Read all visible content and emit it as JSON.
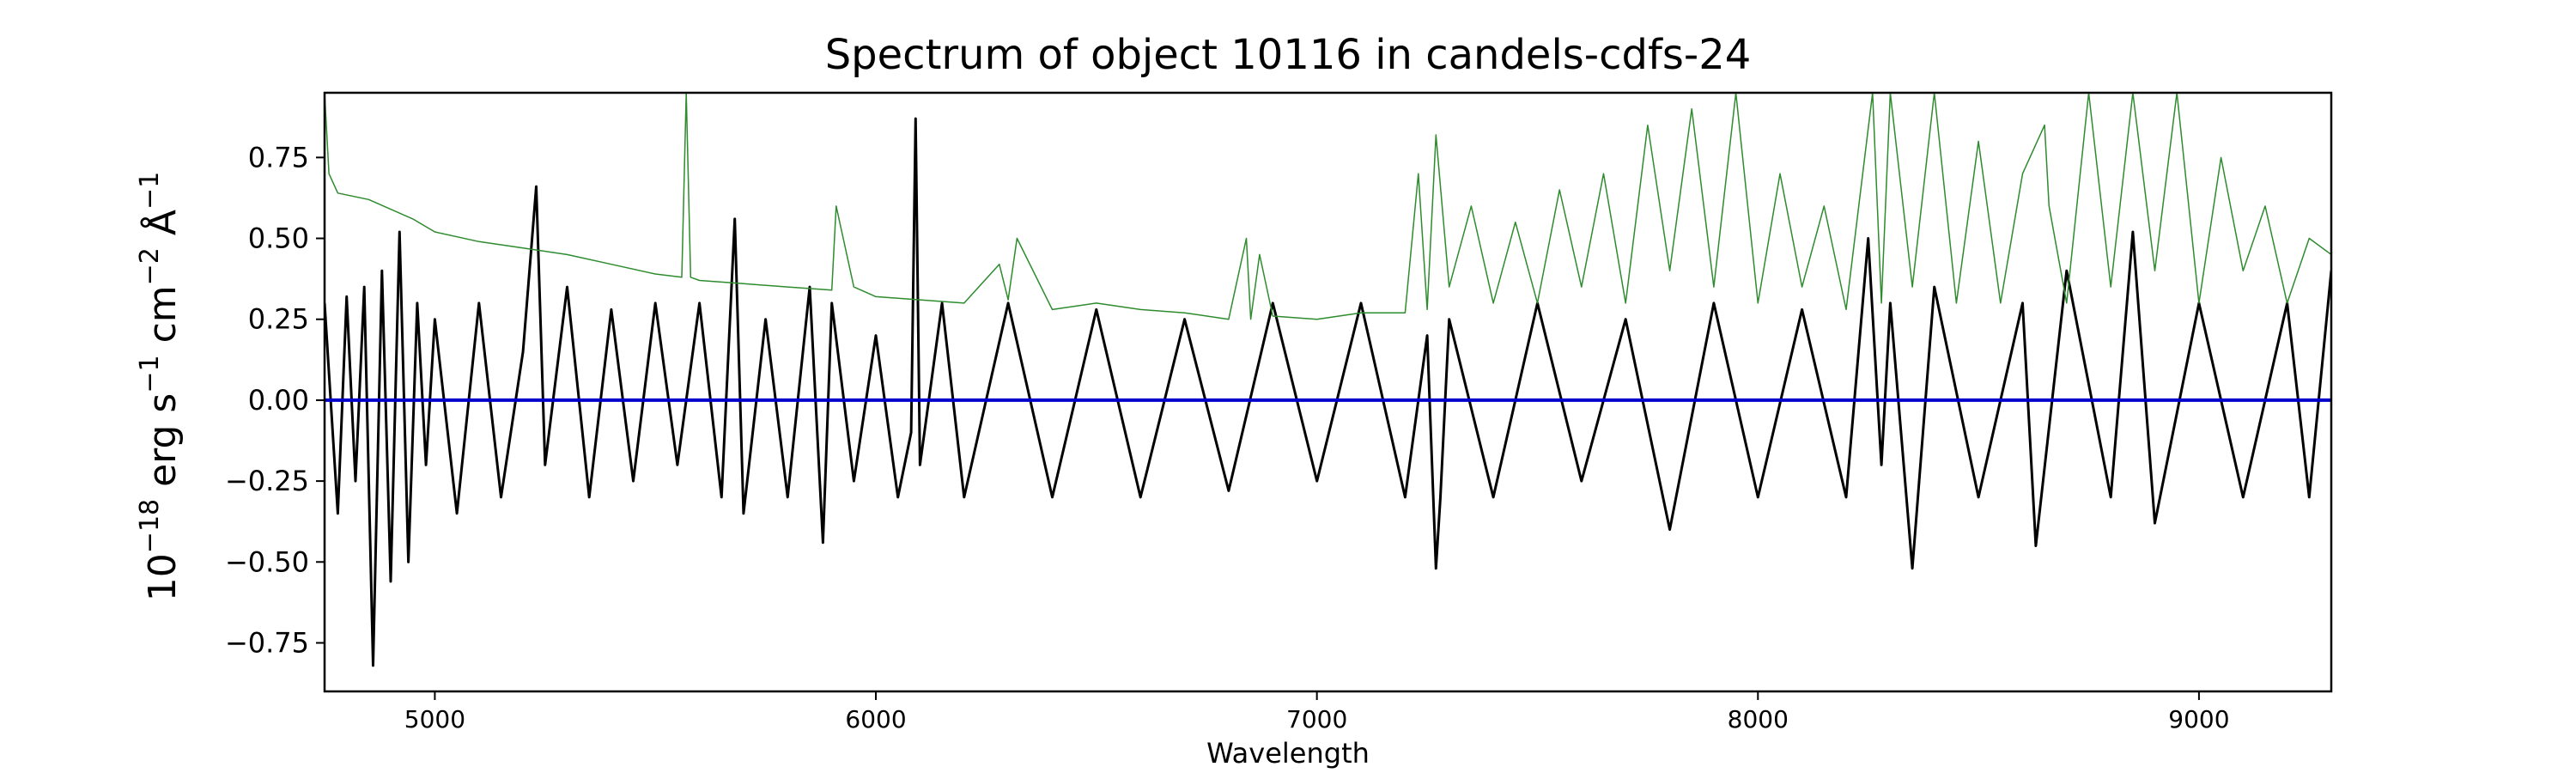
{
  "chart_data": {
    "type": "line",
    "title": "Spectrum of object 10116 in candels-cdfs-24",
    "xlabel": "Wavelength",
    "ylabel": {
      "base": "10",
      "exp_base": "−18",
      "unit_erg": " erg s",
      "exp_s": "−1",
      "unit_cm": " cm",
      "exp_cm": "−2",
      "unit_angstrom": " Å",
      "exp_angstrom": "−1"
    },
    "xlim": [
      4750,
      9300
    ],
    "ylim": [
      -0.9,
      0.95
    ],
    "x_ticks": [
      5000,
      6000,
      7000,
      8000,
      9000
    ],
    "x_tick_labels": [
      "5000",
      "6000",
      "7000",
      "8000",
      "9000"
    ],
    "y_ticks": [
      -0.75,
      -0.5,
      -0.25,
      0.0,
      0.25,
      0.5,
      0.75
    ],
    "y_tick_labels": [
      "−0.75",
      "−0.50",
      "−0.25",
      "0.00",
      "0.25",
      "0.50",
      "0.75"
    ],
    "grid": false,
    "series": [
      {
        "color": "#000000",
        "x": [
          4750,
          4780,
          4800,
          4820,
          4840,
          4860,
          4880,
          4900,
          4920,
          4940,
          4960,
          4980,
          5000,
          5050,
          5100,
          5150,
          5200,
          5230,
          5250,
          5300,
          5350,
          5400,
          5450,
          5500,
          5550,
          5600,
          5650,
          5680,
          5700,
          5750,
          5800,
          5850,
          5880,
          5900,
          5950,
          6000,
          6050,
          6080,
          6090,
          6100,
          6150,
          6200,
          6300,
          6400,
          6500,
          6600,
          6700,
          6800,
          6900,
          7000,
          7100,
          7200,
          7250,
          7270,
          7280,
          7300,
          7400,
          7500,
          7600,
          7700,
          7800,
          7900,
          8000,
          8100,
          8200,
          8250,
          8280,
          8300,
          8350,
          8400,
          8500,
          8600,
          8630,
          8700,
          8800,
          8850,
          8900,
          9000,
          9100,
          9200,
          9250,
          9300
        ],
        "y": [
          0.3,
          -0.35,
          0.32,
          -0.25,
          0.35,
          -0.82,
          0.4,
          -0.56,
          0.52,
          -0.5,
          0.3,
          -0.2,
          0.25,
          -0.35,
          0.3,
          -0.3,
          0.15,
          0.66,
          -0.2,
          0.35,
          -0.3,
          0.28,
          -0.25,
          0.3,
          -0.2,
          0.3,
          -0.3,
          0.56,
          -0.35,
          0.25,
          -0.3,
          0.35,
          -0.44,
          0.3,
          -0.25,
          0.2,
          -0.3,
          -0.1,
          0.87,
          -0.2,
          0.3,
          -0.3,
          0.3,
          -0.3,
          0.28,
          -0.3,
          0.25,
          -0.28,
          0.3,
          -0.25,
          0.3,
          -0.3,
          0.2,
          -0.52,
          -0.3,
          0.25,
          -0.3,
          0.3,
          -0.25,
          0.25,
          -0.4,
          0.3,
          -0.3,
          0.28,
          -0.3,
          0.5,
          -0.2,
          0.3,
          -0.52,
          0.35,
          -0.3,
          0.3,
          -0.45,
          0.4,
          -0.3,
          0.52,
          -0.38,
          0.3,
          -0.3,
          0.3,
          -0.3,
          0.4
        ]
      },
      {
        "color": "#0000cc",
        "x": [
          4750,
          9300
        ],
        "y": [
          0.0,
          0.0
        ]
      },
      {
        "color": "#2e8b2e",
        "x": [
          4750,
          4760,
          4780,
          4850,
          4950,
          5000,
          5100,
          5200,
          5300,
          5400,
          5500,
          5560,
          5570,
          5580,
          5600,
          5700,
          5800,
          5900,
          5910,
          5950,
          6000,
          6100,
          6200,
          6280,
          6300,
          6320,
          6400,
          6500,
          6600,
          6700,
          6800,
          6840,
          6850,
          6870,
          6900,
          7000,
          7100,
          7200,
          7230,
          7250,
          7270,
          7300,
          7350,
          7400,
          7450,
          7500,
          7550,
          7600,
          7650,
          7700,
          7750,
          7800,
          7850,
          7900,
          7950,
          8000,
          8050,
          8100,
          8150,
          8200,
          8260,
          8280,
          8300,
          8350,
          8400,
          8450,
          8500,
          8550,
          8600,
          8650,
          8660,
          8700,
          8750,
          8800,
          8850,
          8900,
          8950,
          9000,
          9050,
          9100,
          9150,
          9200,
          9250,
          9300
        ],
        "y": [
          0.95,
          0.7,
          0.64,
          0.62,
          0.56,
          0.52,
          0.49,
          0.47,
          0.45,
          0.42,
          0.39,
          0.38,
          0.95,
          0.38,
          0.37,
          0.36,
          0.35,
          0.34,
          0.6,
          0.35,
          0.32,
          0.31,
          0.3,
          0.42,
          0.31,
          0.5,
          0.28,
          0.3,
          0.28,
          0.27,
          0.25,
          0.5,
          0.25,
          0.45,
          0.26,
          0.25,
          0.27,
          0.27,
          0.7,
          0.28,
          0.82,
          0.35,
          0.6,
          0.3,
          0.55,
          0.3,
          0.65,
          0.35,
          0.7,
          0.3,
          0.85,
          0.4,
          0.9,
          0.35,
          0.95,
          0.3,
          0.7,
          0.35,
          0.6,
          0.28,
          0.95,
          0.3,
          0.95,
          0.35,
          0.95,
          0.3,
          0.8,
          0.3,
          0.7,
          0.85,
          0.6,
          0.3,
          0.95,
          0.35,
          0.95,
          0.4,
          0.95,
          0.3,
          0.75,
          0.4,
          0.6,
          0.3,
          0.5,
          0.45
        ]
      }
    ]
  }
}
